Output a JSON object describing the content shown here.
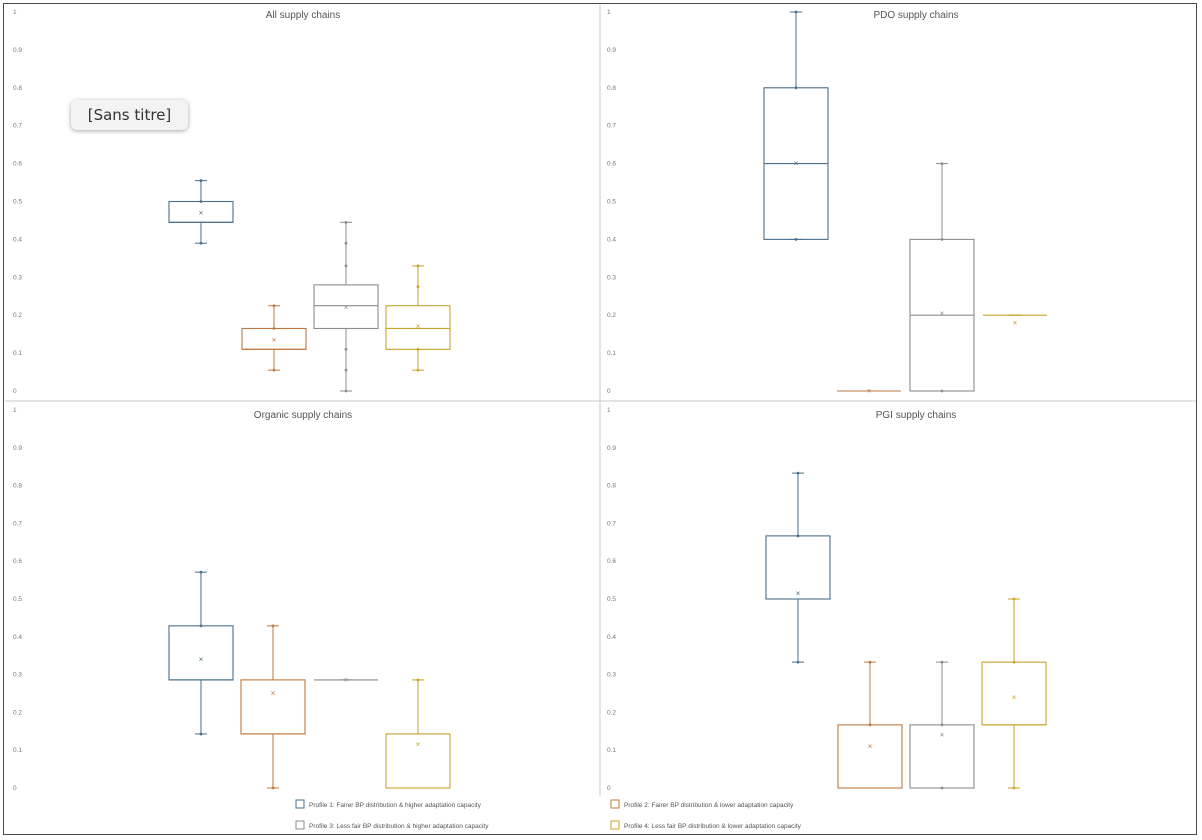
{
  "overlay_label": "[Sans titre]",
  "y_ticks": [
    "0",
    "0.1",
    "0.2",
    "0.3",
    "0.4",
    "0.5",
    "0.6",
    "0.7",
    "0.8",
    "0.9",
    "1"
  ],
  "colors": {
    "profile1": "#4a6f8a",
    "profile2": "#c0783f",
    "profile3": "#8c8c8c",
    "profile4": "#c9a227",
    "frame": "#4a4a4a",
    "divider": "#c8c8c8"
  },
  "legend": [
    "Profile 1: Fairer BP distribution  & higher adaptation capacity",
    "Profile 2: Fairer BP distribution  & lower adaptation capacity",
    "Profile 3: Less fair BP distribution  & higher adaptation capacity",
    "Profile 4: Less fair BP distribution  & lower adaptation capacity"
  ],
  "chart_data": [
    {
      "type": "box",
      "title": "All supply chains",
      "ylim": [
        0,
        1
      ],
      "series": [
        {
          "min": 0.39,
          "q1": 0.445,
          "median": 0.445,
          "q3": 0.5,
          "max": 0.555,
          "mean": 0.47,
          "points": [
            0.39,
            0.5,
            0.555
          ]
        },
        {
          "min": 0.055,
          "q1": 0.11,
          "median": 0.11,
          "q3": 0.165,
          "max": 0.225,
          "mean": 0.135,
          "points": [
            0.055,
            0.165,
            0.225
          ]
        },
        {
          "min": 0.0,
          "q1": 0.165,
          "median": 0.225,
          "q3": 0.28,
          "max": 0.445,
          "mean": 0.22,
          "points": [
            0.0,
            0.055,
            0.11,
            0.33,
            0.39,
            0.445
          ]
        },
        {
          "min": 0.055,
          "q1": 0.11,
          "median": 0.165,
          "q3": 0.225,
          "max": 0.33,
          "mean": 0.17,
          "points": [
            0.055,
            0.11,
            0.275,
            0.33
          ]
        }
      ]
    },
    {
      "type": "box",
      "title": "PDO supply chains",
      "ylim": [
        0,
        1
      ],
      "series": [
        {
          "min": 0.4,
          "q1": 0.4,
          "median": 0.6,
          "q3": 0.8,
          "max": 1.0,
          "mean": 0.6,
          "points": [
            0.4,
            0.8,
            1.0
          ]
        },
        {
          "min": 0.0,
          "q1": 0.0,
          "median": 0.0,
          "q3": 0.0,
          "max": 0.0,
          "mean": 0.0,
          "points": []
        },
        {
          "min": 0.0,
          "q1": 0.0,
          "median": 0.2,
          "q3": 0.4,
          "max": 0.6,
          "mean": 0.205,
          "points": [
            0.0,
            0.4,
            0.6
          ]
        },
        {
          "min": 0.2,
          "q1": 0.2,
          "median": 0.2,
          "q3": 0.2,
          "max": 0.2,
          "mean": 0.18,
          "points": []
        }
      ]
    },
    {
      "type": "box",
      "title": "Organic supply chains",
      "ylim": [
        0,
        1
      ],
      "series": [
        {
          "min": 0.143,
          "q1": 0.286,
          "median": 0.286,
          "q3": 0.429,
          "max": 0.571,
          "mean": 0.34,
          "points": [
            0.143,
            0.429,
            0.571
          ]
        },
        {
          "min": 0.0,
          "q1": 0.143,
          "median": 0.143,
          "q3": 0.286,
          "max": 0.429,
          "mean": 0.25,
          "points": [
            0.0,
            0.429
          ]
        },
        {
          "min": 0.286,
          "q1": 0.286,
          "median": 0.286,
          "q3": 0.286,
          "max": 0.286,
          "mean": 0.286,
          "points": []
        },
        {
          "min": 0.0,
          "q1": 0.0,
          "median": 0.0,
          "q3": 0.143,
          "max": 0.286,
          "mean": 0.115,
          "points": [
            0.286
          ]
        }
      ]
    },
    {
      "type": "box",
      "title": "PGI supply chains",
      "ylim": [
        0,
        1
      ],
      "series": [
        {
          "min": 0.333,
          "q1": 0.5,
          "median": 0.5,
          "q3": 0.667,
          "max": 0.833,
          "mean": 0.515,
          "points": [
            0.333,
            0.667,
            0.833
          ]
        },
        {
          "min": 0.0,
          "q1": 0.0,
          "median": 0.0,
          "q3": 0.167,
          "max": 0.333,
          "mean": 0.11,
          "points": [
            0.167,
            0.333
          ]
        },
        {
          "min": 0.0,
          "q1": 0.0,
          "median": 0.0,
          "q3": 0.167,
          "max": 0.333,
          "mean": 0.14,
          "points": [
            0.0,
            0.167,
            0.333
          ]
        },
        {
          "min": 0.0,
          "q1": 0.167,
          "median": 0.167,
          "q3": 0.333,
          "max": 0.5,
          "mean": 0.24,
          "points": [
            0.0,
            0.333,
            0.5
          ]
        }
      ]
    }
  ]
}
